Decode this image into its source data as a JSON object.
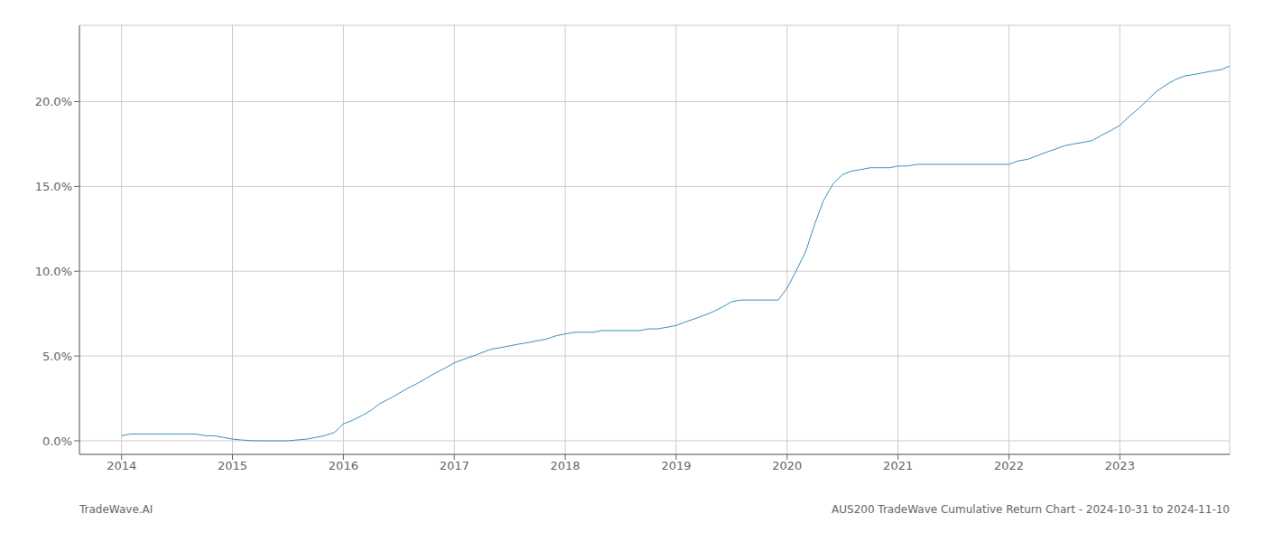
{
  "chart_data": {
    "type": "line",
    "title": "AUS200 TradeWave Cumulative Return Chart - 2024-10-31 to 2024-11-10",
    "annotations": [
      "TradeWave.AI"
    ],
    "color": "#3a8fc0",
    "grid": true,
    "x": [
      2014.0,
      2014.08,
      2014.17,
      2014.25,
      2014.33,
      2014.42,
      2014.5,
      2014.58,
      2014.67,
      2014.75,
      2014.83,
      2014.92,
      2015.0,
      2015.08,
      2015.17,
      2015.25,
      2015.33,
      2015.42,
      2015.5,
      2015.58,
      2015.67,
      2015.75,
      2015.83,
      2015.92,
      2016.0,
      2016.08,
      2016.17,
      2016.25,
      2016.33,
      2016.42,
      2016.5,
      2016.58,
      2016.67,
      2016.75,
      2016.83,
      2016.92,
      2017.0,
      2017.08,
      2017.17,
      2017.25,
      2017.33,
      2017.42,
      2017.5,
      2017.58,
      2017.67,
      2017.75,
      2017.83,
      2017.92,
      2018.0,
      2018.08,
      2018.17,
      2018.25,
      2018.33,
      2018.42,
      2018.5,
      2018.58,
      2018.67,
      2018.75,
      2018.83,
      2018.92,
      2019.0,
      2019.08,
      2019.17,
      2019.25,
      2019.33,
      2019.42,
      2019.5,
      2019.58,
      2019.67,
      2019.75,
      2019.83,
      2019.92,
      2020.0,
      2020.08,
      2020.17,
      2020.25,
      2020.33,
      2020.42,
      2020.5,
      2020.58,
      2020.67,
      2020.75,
      2020.83,
      2020.92,
      2021.0,
      2021.08,
      2021.17,
      2021.25,
      2021.33,
      2021.42,
      2021.5,
      2021.58,
      2021.67,
      2021.75,
      2021.83,
      2021.92,
      2022.0,
      2022.08,
      2022.17,
      2022.25,
      2022.33,
      2022.42,
      2022.5,
      2022.58,
      2022.67,
      2022.75,
      2022.83,
      2022.92,
      2023.0,
      2023.08,
      2023.17,
      2023.25,
      2023.33,
      2023.42,
      2023.5,
      2023.58,
      2023.67,
      2023.75,
      2023.83,
      2023.92,
      2023.99
    ],
    "values": [
      0.003,
      0.004,
      0.004,
      0.004,
      0.004,
      0.004,
      0.004,
      0.004,
      0.004,
      0.003,
      0.003,
      0.002,
      0.001,
      0.0005,
      0.0001,
      0.0,
      0.0,
      0.0,
      0.0,
      0.0005,
      0.001,
      0.002,
      0.003,
      0.005,
      0.01,
      0.012,
      0.015,
      0.018,
      0.022,
      0.025,
      0.028,
      0.031,
      0.034,
      0.037,
      0.04,
      0.043,
      0.046,
      0.048,
      0.05,
      0.052,
      0.054,
      0.055,
      0.056,
      0.057,
      0.058,
      0.059,
      0.06,
      0.062,
      0.063,
      0.064,
      0.064,
      0.064,
      0.065,
      0.065,
      0.065,
      0.065,
      0.065,
      0.066,
      0.066,
      0.067,
      0.068,
      0.07,
      0.072,
      0.074,
      0.076,
      0.079,
      0.082,
      0.083,
      0.083,
      0.083,
      0.083,
      0.083,
      0.09,
      0.1,
      0.112,
      0.128,
      0.142,
      0.152,
      0.157,
      0.159,
      0.16,
      0.161,
      0.161,
      0.161,
      0.162,
      0.162,
      0.163,
      0.163,
      0.163,
      0.163,
      0.163,
      0.163,
      0.163,
      0.163,
      0.163,
      0.163,
      0.163,
      0.165,
      0.166,
      0.168,
      0.17,
      0.172,
      0.174,
      0.175,
      0.176,
      0.177,
      0.18,
      0.183,
      0.186,
      0.191,
      0.196,
      0.201,
      0.206,
      0.21,
      0.213,
      0.215,
      0.216,
      0.217,
      0.218,
      0.219,
      0.221
    ],
    "xlim": [
      2013.62,
      2023.99
    ],
    "ylim": [
      -0.008,
      0.245
    ],
    "xticks": [
      2014,
      2015,
      2016,
      2017,
      2018,
      2019,
      2020,
      2021,
      2022,
      2023
    ],
    "yticks": [
      {
        "value": 0.0,
        "label": "0.0%"
      },
      {
        "value": 0.05,
        "label": "5.0%"
      },
      {
        "value": 0.1,
        "label": "10.0%"
      },
      {
        "value": 0.15,
        "label": "15.0%"
      },
      {
        "value": 0.2,
        "label": "20.0%"
      }
    ]
  }
}
